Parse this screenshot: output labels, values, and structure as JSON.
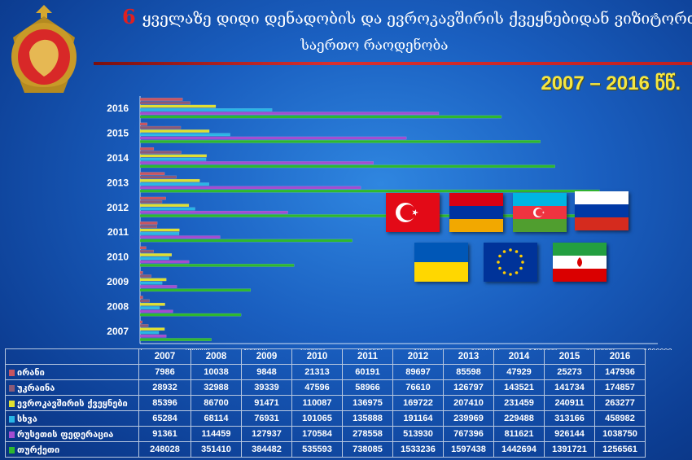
{
  "header": {
    "number": "6",
    "title_line1": "ყველაზე დიდი დენადობის და ევროკავშირის ქვეყნებიდან ვიზიტორთა",
    "title_line2": "საერთო რაოდენობა",
    "year_range": "2007 – 2016 წწ."
  },
  "colors": {
    "iran": "#c85560",
    "ukraine": "#8a5a78",
    "eu": "#e0e030",
    "other": "#29b6e6",
    "russia": "#a44cd0",
    "turkey": "#2eb82e",
    "armenia": "#3d4fb8",
    "azerbaijan": "#d0302a"
  },
  "flags": [
    "turkey-flag",
    "armenia-flag",
    "azerbaijan-flag",
    "russia-flag",
    "ukraine-flag",
    "eu-flag",
    "iran-flag"
  ],
  "chart_data": {
    "type": "bar",
    "orientation": "horizontal",
    "categories": [
      "2007",
      "2008",
      "2009",
      "2010",
      "2011",
      "2012",
      "2013",
      "2014",
      "2015",
      "2016"
    ],
    "xlim": [
      0,
      1800000
    ],
    "x_ticks": [
      "0",
      "200000",
      "400000",
      "600000",
      "800000",
      "1000000",
      "1200000",
      "1400000",
      "1600000",
      "1800000"
    ],
    "series": [
      {
        "name": "ირანი",
        "key": "iran",
        "values": [
          7986,
          10038,
          9848,
          21313,
          60191,
          89697,
          85598,
          47929,
          25273,
          147936
        ]
      },
      {
        "name": "უკრაინა",
        "key": "ukraine",
        "values": [
          28932,
          32988,
          39339,
          47596,
          58966,
          76610,
          126797,
          143521,
          141734,
          174857
        ]
      },
      {
        "name": "ევროკავშირის ქვეყნები",
        "key": "eu",
        "values": [
          85396,
          86700,
          91471,
          110087,
          136975,
          169722,
          207410,
          231459,
          240911,
          263277
        ]
      },
      {
        "name": "სხვა",
        "key": "other",
        "values": [
          65284,
          68114,
          76931,
          101065,
          135888,
          191164,
          239969,
          229488,
          313166,
          458982
        ]
      },
      {
        "name": "რუსეთის ფედერაცია",
        "key": "russia",
        "values": [
          91361,
          114459,
          127937,
          170584,
          278558,
          513930,
          767396,
          811621,
          926144,
          1038750
        ]
      },
      {
        "name": "თურქეთი",
        "key": "turkey",
        "values": [
          248028,
          351410,
          384482,
          535593,
          738085,
          1533236,
          1597438,
          1442694,
          1391721,
          1256561
        ]
      }
    ]
  }
}
